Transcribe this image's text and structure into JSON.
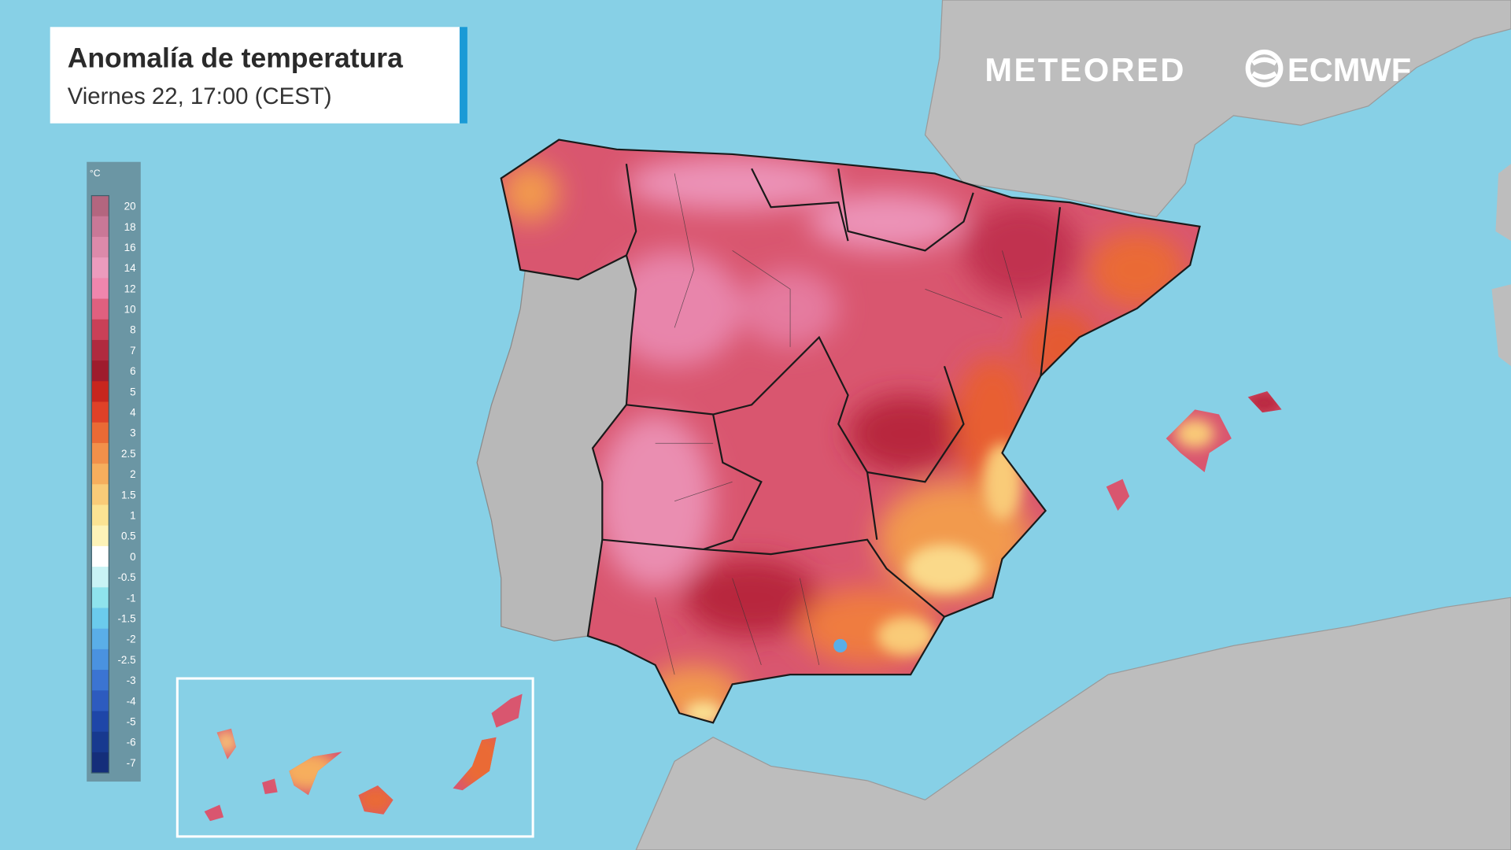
{
  "header": {
    "title": "Anomalía de temperatura",
    "subtitle": "Viernes 22, 17:00 (CEST)"
  },
  "branding": {
    "logos": [
      "METEORED",
      "ECMWF"
    ]
  },
  "legend": {
    "unit": "°C",
    "items": [
      {
        "label": "20",
        "color": "#b3667f"
      },
      {
        "label": "18",
        "color": "#c97897"
      },
      {
        "label": "16",
        "color": "#dc8aaa"
      },
      {
        "label": "14",
        "color": "#eb9bbd"
      },
      {
        "label": "12",
        "color": "#ef86ad"
      },
      {
        "label": "10",
        "color": "#e0607f"
      },
      {
        "label": "8",
        "color": "#c94057"
      },
      {
        "label": "7",
        "color": "#b02a3f"
      },
      {
        "label": "6",
        "color": "#9e1c2d"
      },
      {
        "label": "5",
        "color": "#c7261e"
      },
      {
        "label": "4",
        "color": "#df4128"
      },
      {
        "label": "3",
        "color": "#ea6a35"
      },
      {
        "label": "2.5",
        "color": "#f2904a"
      },
      {
        "label": "2",
        "color": "#f6ae5d"
      },
      {
        "label": "1.5",
        "color": "#f9cb78"
      },
      {
        "label": "1",
        "color": "#fbe393"
      },
      {
        "label": "0.5",
        "color": "#fdf3b8"
      },
      {
        "label": "0",
        "color": "#ffffff"
      },
      {
        "label": "-0.5",
        "color": "#c9f3f5"
      },
      {
        "label": "-1",
        "color": "#8fe3ec"
      },
      {
        "label": "-1.5",
        "color": "#6bcbec"
      },
      {
        "label": "-2",
        "color": "#5aaee8"
      },
      {
        "label": "-2.5",
        "color": "#4a92e0"
      },
      {
        "label": "-3",
        "color": "#3b74d2"
      },
      {
        "label": "-4",
        "color": "#2d5bbf"
      },
      {
        "label": "-5",
        "color": "#1e46a8"
      },
      {
        "label": "-6",
        "color": "#17398f"
      },
      {
        "label": "-7",
        "color": "#142e7a"
      }
    ]
  }
}
